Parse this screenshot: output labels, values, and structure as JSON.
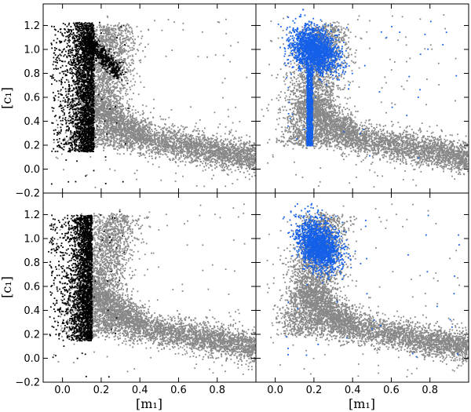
{
  "figure": {
    "xlabel": "[m₁]",
    "ylabel": "[c₁]"
  },
  "colors": {
    "background_points": "#888888",
    "black_points": "#000000",
    "blue_points": "#1560e8"
  },
  "chart_data": [
    {
      "type": "scatter",
      "panel": "top-left",
      "xlim": [
        -0.1,
        1.0
      ],
      "ylim": [
        -0.2,
        1.38
      ],
      "xticks": [],
      "yticks": [
        -0.2,
        0.0,
        0.2,
        0.4,
        0.6,
        0.8,
        1.0,
        1.2
      ],
      "ytick_labels": [
        "−0.2",
        "0.0",
        "0.2",
        "0.4",
        "0.6",
        "0.8",
        "1.0",
        "1.2"
      ],
      "ylabel": "[c₁]",
      "xlabel": "",
      "grid": false,
      "legend": "none",
      "series": [
        {
          "role": "background",
          "color": "#888888",
          "regions": [
            {
              "x_range": [
                0.05,
                0.35
              ],
              "y_range": [
                0.2,
                1.2
              ]
            },
            {
              "x_range": [
                0.15,
                1.0
              ],
              "y_range": [
                -0.1,
                0.4
              ]
            }
          ]
        },
        {
          "role": "highlight",
          "color": "#000000",
          "regions": [
            {
              "x_range": [
                -0.05,
                0.16
              ],
              "y_range": [
                0.1,
                1.25
              ]
            },
            {
              "x_range": [
                0.12,
                0.3
              ],
              "y_range": [
                0.8,
                1.1
              ]
            }
          ]
        }
      ]
    },
    {
      "type": "scatter",
      "panel": "top-right",
      "xlim": [
        -0.1,
        1.0
      ],
      "ylim": [
        -0.2,
        1.38
      ],
      "xticks": [],
      "yticks": [],
      "xlabel": "",
      "ylabel": "",
      "grid": false,
      "legend": "none",
      "series": [
        {
          "role": "background",
          "color": "#888888",
          "regions": [
            {
              "x_range": [
                0.0,
                0.35
              ],
              "y_range": [
                0.2,
                1.2
              ]
            },
            {
              "x_range": [
                0.15,
                1.0
              ],
              "y_range": [
                -0.1,
                0.4
              ]
            }
          ]
        },
        {
          "role": "highlight",
          "color": "#1560e8",
          "regions": [
            {
              "x_range": [
                0.1,
                0.35
              ],
              "y_range": [
                0.75,
                1.2
              ]
            },
            {
              "x_range": [
                0.12,
                0.2
              ],
              "y_range": [
                0.2,
                0.8
              ]
            }
          ]
        }
      ]
    },
    {
      "type": "scatter",
      "panel": "bottom-left",
      "xlim": [
        -0.1,
        1.0
      ],
      "ylim": [
        -0.2,
        1.38
      ],
      "xticks": [
        0.0,
        0.2,
        0.4,
        0.6,
        0.8
      ],
      "xtick_labels": [
        "0.0",
        "0.2",
        "0.4",
        "0.6",
        "0.8"
      ],
      "yticks": [
        -0.2,
        0.0,
        0.2,
        0.4,
        0.6,
        0.8,
        1.0,
        1.2
      ],
      "ytick_labels": [
        "−0.2",
        "0.0",
        "0.2",
        "0.4",
        "0.6",
        "0.8",
        "1.0",
        "1.2"
      ],
      "xlabel": "[m₁]",
      "ylabel": "[c₁]",
      "grid": false,
      "legend": "none",
      "series": [
        {
          "role": "background",
          "color": "#888888",
          "regions": [
            {
              "x_range": [
                0.05,
                0.35
              ],
              "y_range": [
                0.2,
                1.2
              ]
            },
            {
              "x_range": [
                0.15,
                1.0
              ],
              "y_range": [
                -0.1,
                0.4
              ]
            }
          ]
        },
        {
          "role": "highlight",
          "color": "#000000",
          "regions": [
            {
              "x_range": [
                -0.05,
                0.16
              ],
              "y_range": [
                0.1,
                1.25
              ]
            }
          ]
        }
      ]
    },
    {
      "type": "scatter",
      "panel": "bottom-right",
      "xlim": [
        -0.1,
        1.0
      ],
      "ylim": [
        -0.2,
        1.38
      ],
      "xticks": [
        0.0,
        0.2,
        0.4,
        0.6,
        0.8
      ],
      "xtick_labels": [
        "0.0",
        "0.2",
        "0.4",
        "0.6",
        "0.8"
      ],
      "yticks": [],
      "xlabel": "[m₁]",
      "ylabel": "",
      "grid": false,
      "legend": "none",
      "series": [
        {
          "role": "background",
          "color": "#888888",
          "regions": [
            {
              "x_range": [
                0.0,
                0.35
              ],
              "y_range": [
                0.2,
                1.2
              ]
            },
            {
              "x_range": [
                0.15,
                1.0
              ],
              "y_range": [
                -0.1,
                0.4
              ]
            }
          ]
        },
        {
          "role": "highlight",
          "color": "#1560e8",
          "regions": [
            {
              "x_range": [
                0.12,
                0.35
              ],
              "y_range": [
                0.62,
                1.22
              ]
            }
          ]
        }
      ]
    }
  ]
}
